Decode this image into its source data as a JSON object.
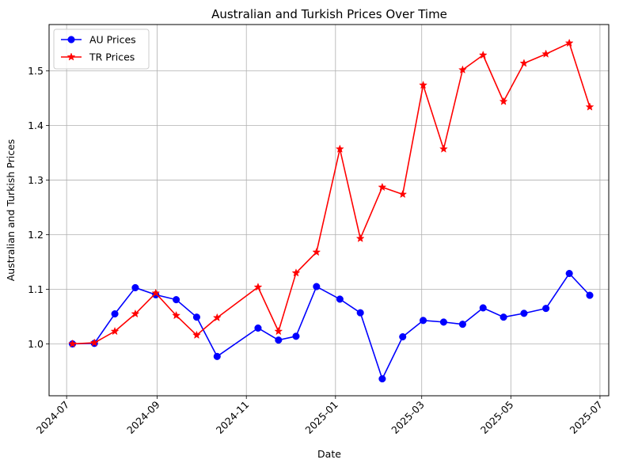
{
  "chart_data": {
    "type": "line",
    "title": "Australian and Turkish Prices Over Time",
    "xlabel": "Date",
    "ylabel": "Australian and Turkish Prices",
    "xlim": [
      "2024-06-19",
      "2025-07-07"
    ],
    "ylim": [
      0.905,
      1.585
    ],
    "x_ticks": [
      "2024-07",
      "2024-09",
      "2024-11",
      "2025-01",
      "2025-03",
      "2025-05",
      "2025-07"
    ],
    "y_ticks": [
      1.0,
      1.1,
      1.2,
      1.3,
      1.4,
      1.5
    ],
    "y_tick_labels": [
      "1.0",
      "1.1",
      "1.2",
      "1.3",
      "1.4",
      "1.5"
    ],
    "grid": true,
    "legend_position": "top-left",
    "series": [
      {
        "name": "AU Prices",
        "color": "#0000ff",
        "marker": "circle",
        "points": [
          {
            "x": "2024-07-05",
            "y": 1.0
          },
          {
            "x": "2024-07-20",
            "y": 1.001
          },
          {
            "x": "2024-08-03",
            "y": 1.055
          },
          {
            "x": "2024-08-17",
            "y": 1.103
          },
          {
            "x": "2024-08-31",
            "y": 1.09
          },
          {
            "x": "2024-09-14",
            "y": 1.081
          },
          {
            "x": "2024-09-28",
            "y": 1.049
          },
          {
            "x": "2024-10-12",
            "y": 0.977
          },
          {
            "x": "2024-11-09",
            "y": 1.029
          },
          {
            "x": "2024-11-23",
            "y": 1.007
          },
          {
            "x": "2024-12-05",
            "y": 1.014
          },
          {
            "x": "2024-12-19",
            "y": 1.105
          },
          {
            "x": "2025-01-04",
            "y": 1.082
          },
          {
            "x": "2025-01-18",
            "y": 1.057
          },
          {
            "x": "2025-02-02",
            "y": 0.936
          },
          {
            "x": "2025-02-16",
            "y": 1.013
          },
          {
            "x": "2025-03-02",
            "y": 1.043
          },
          {
            "x": "2025-03-16",
            "y": 1.04
          },
          {
            "x": "2025-03-29",
            "y": 1.036
          },
          {
            "x": "2025-04-12",
            "y": 1.066
          },
          {
            "x": "2025-04-26",
            "y": 1.049
          },
          {
            "x": "2025-05-10",
            "y": 1.056
          },
          {
            "x": "2025-05-25",
            "y": 1.065
          },
          {
            "x": "2025-06-10",
            "y": 1.129
          },
          {
            "x": "2025-06-24",
            "y": 1.089
          }
        ]
      },
      {
        "name": "TR Prices",
        "color": "#ff0000",
        "marker": "star",
        "points": [
          {
            "x": "2024-07-05",
            "y": 1.0
          },
          {
            "x": "2024-07-20",
            "y": 1.002
          },
          {
            "x": "2024-08-03",
            "y": 1.023
          },
          {
            "x": "2024-08-17",
            "y": 1.055
          },
          {
            "x": "2024-08-31",
            "y": 1.093
          },
          {
            "x": "2024-09-14",
            "y": 1.052
          },
          {
            "x": "2024-09-28",
            "y": 1.016
          },
          {
            "x": "2024-10-12",
            "y": 1.048
          },
          {
            "x": "2024-11-09",
            "y": 1.104
          },
          {
            "x": "2024-11-23",
            "y": 1.023
          },
          {
            "x": "2024-12-05",
            "y": 1.13
          },
          {
            "x": "2024-12-19",
            "y": 1.168
          },
          {
            "x": "2025-01-04",
            "y": 1.357
          },
          {
            "x": "2025-01-18",
            "y": 1.193
          },
          {
            "x": "2025-02-02",
            "y": 1.287
          },
          {
            "x": "2025-02-16",
            "y": 1.274
          },
          {
            "x": "2025-03-02",
            "y": 1.474
          },
          {
            "x": "2025-03-16",
            "y": 1.357
          },
          {
            "x": "2025-03-29",
            "y": 1.502
          },
          {
            "x": "2025-04-12",
            "y": 1.529
          },
          {
            "x": "2025-04-26",
            "y": 1.444
          },
          {
            "x": "2025-05-10",
            "y": 1.514
          },
          {
            "x": "2025-05-25",
            "y": 1.531
          },
          {
            "x": "2025-06-10",
            "y": 1.551
          },
          {
            "x": "2025-06-24",
            "y": 1.434
          }
        ]
      }
    ]
  }
}
